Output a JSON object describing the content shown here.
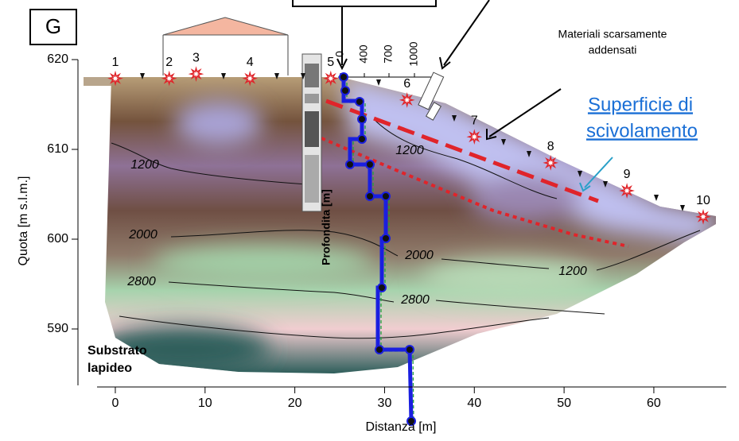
{
  "chart_data": {
    "type": "section",
    "panel_label": "G",
    "xlabel": "Distanza [m]",
    "ylabel": "Quota [m s.l.m.]",
    "xlim": [
      -2,
      68
    ],
    "ylim": [
      584,
      620
    ],
    "xticks": [
      0,
      10,
      20,
      30,
      40,
      50,
      60
    ],
    "yticks": [
      590,
      600,
      610,
      620
    ],
    "sources": [
      {
        "label": "1",
        "x": 0,
        "y": 617.9
      },
      {
        "label": "2",
        "x": 6,
        "y": 617.9
      },
      {
        "label": "3",
        "x": 9,
        "y": 618.4
      },
      {
        "label": "4",
        "x": 15,
        "y": 617.9
      },
      {
        "label": "5",
        "x": 24,
        "y": 617.9
      },
      {
        "label": "6",
        "x": 32.5,
        "y": 615.5
      },
      {
        "label": "7",
        "x": 40,
        "y": 611.4
      },
      {
        "label": "8",
        "x": 48.5,
        "y": 608.5
      },
      {
        "label": "9",
        "x": 57,
        "y": 605.4
      },
      {
        "label": "10",
        "x": 65.5,
        "y": 602.5
      }
    ],
    "contour_labels": [
      1200,
      2000,
      2800,
      1200,
      2000,
      2800,
      1200
    ],
    "inset_ticks": [
      0,
      400,
      700,
      1000
    ],
    "inset_label": "Profondita [m]",
    "annotations": {
      "materials": [
        "Materiali scarsamente",
        "addensati"
      ],
      "surface": [
        "Superficie di",
        "scivolamento"
      ],
      "bedrock": [
        "Substrato",
        "lapideo"
      ]
    },
    "color": "#e0242a"
  }
}
